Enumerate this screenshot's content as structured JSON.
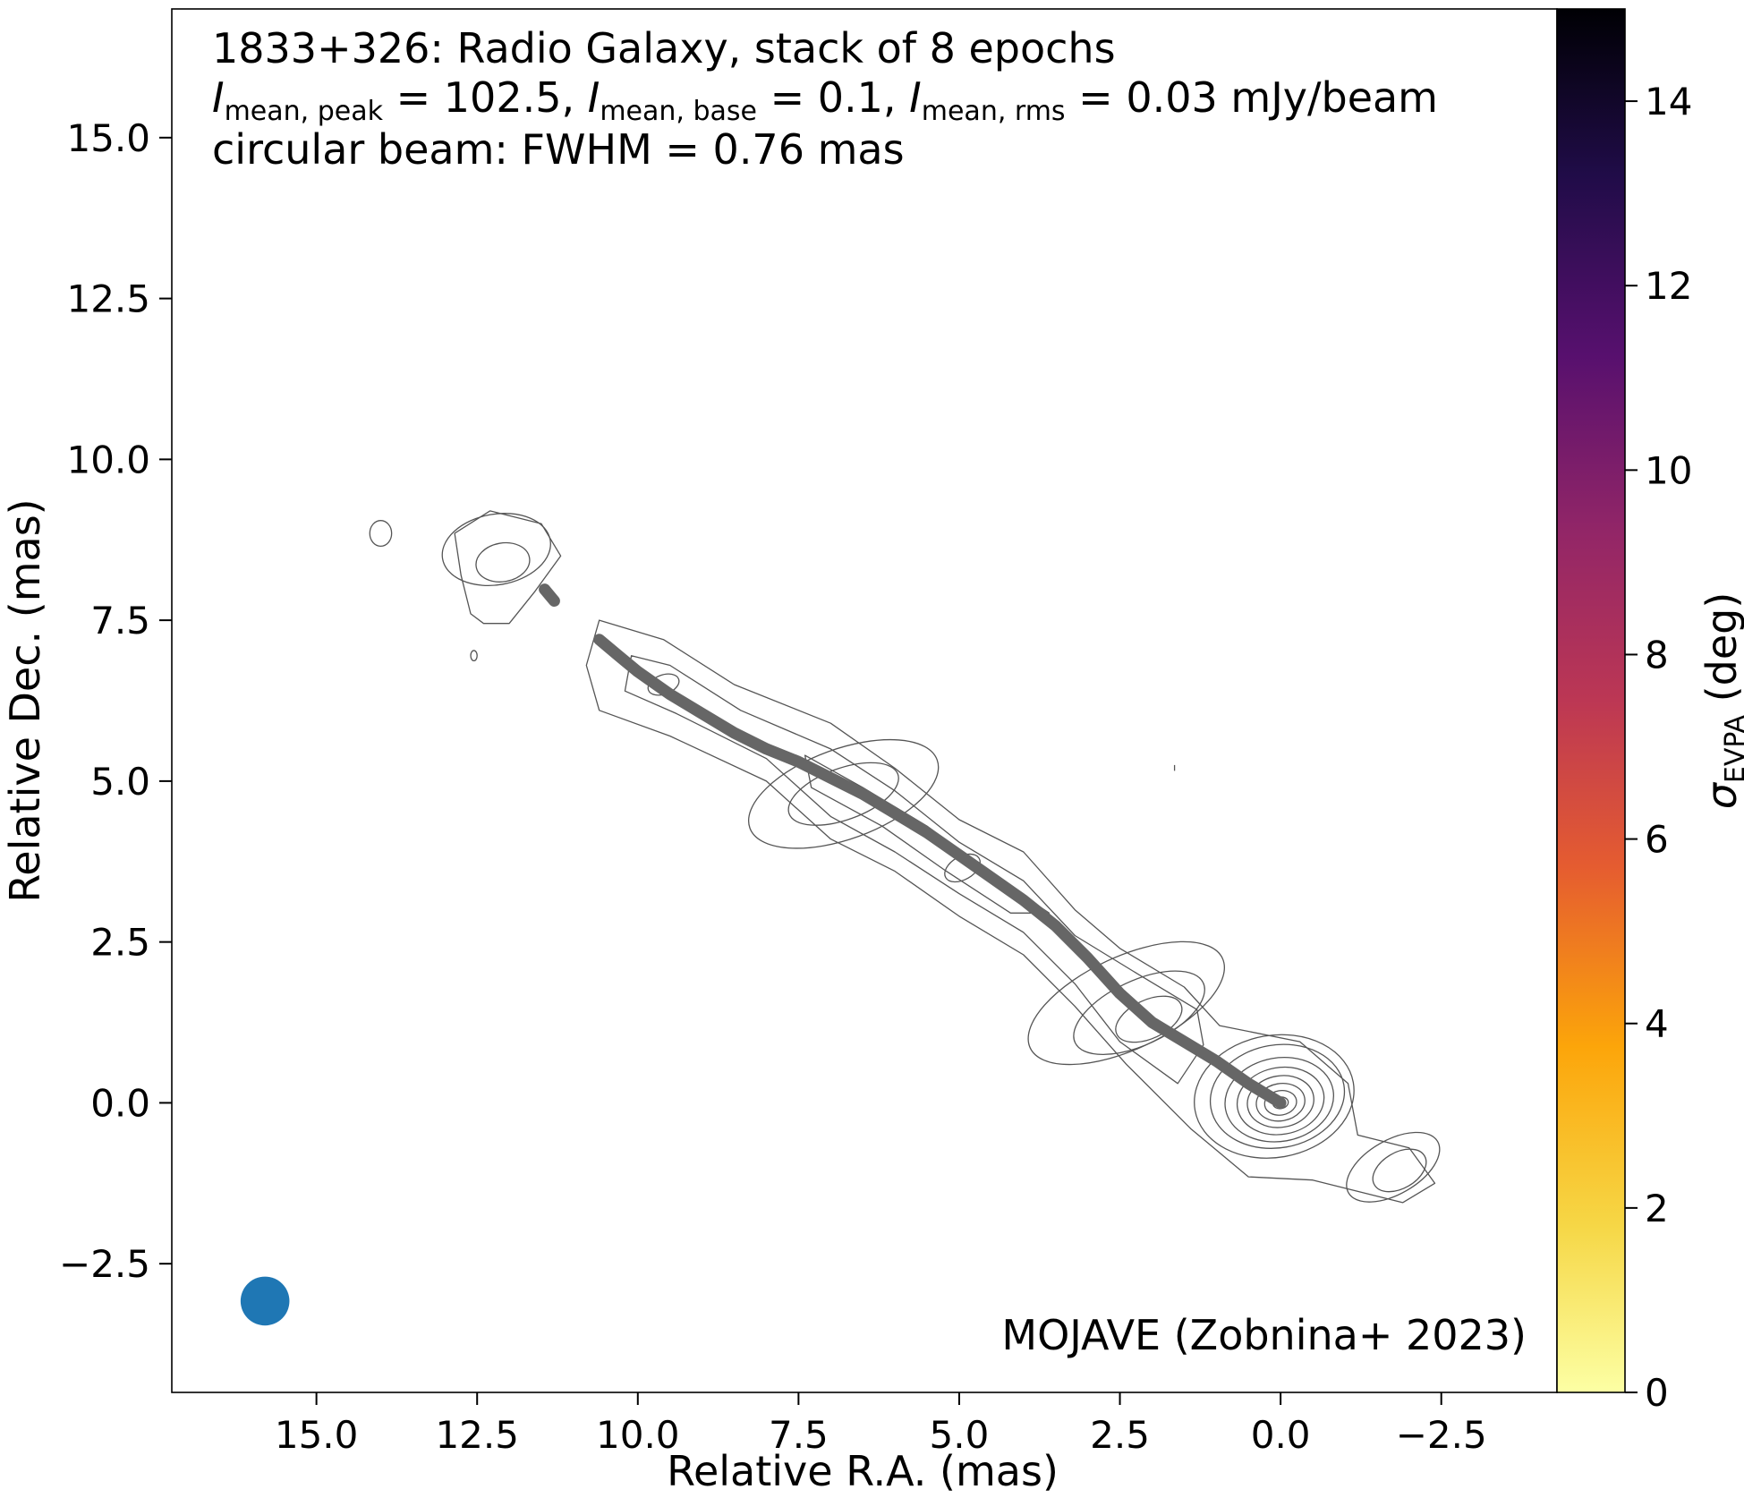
{
  "chart_data": {
    "type": "scatter",
    "title_lines": [
      "1833+326: Radio Galaxy, stack of 8 epochs",
      [
        "I",
        "mean, peak",
        " = 102.5, ",
        "I",
        "mean, base",
        " = 0.1, ",
        "I",
        "mean, rms",
        " = 0.03 mJy/beam"
      ],
      "circular beam: FWHM = 0.76 mas"
    ],
    "credit": "MOJAVE (Zobnina+ 2023)",
    "xlabel": "Relative R.A. (mas)",
    "ylabel": "Relative Dec. (mas)",
    "colorbar_label": {
      "symbol": "σ",
      "sub": "EVPA",
      "unit": " (deg)"
    },
    "xlim": [
      17.25,
      -4.3
    ],
    "ylim": [
      -4.5,
      17.0
    ],
    "xticks": [
      15.0,
      12.5,
      10.0,
      7.5,
      5.0,
      2.5,
      0.0,
      -2.5
    ],
    "xtick_labels": [
      "15.0",
      "12.5",
      "10.0",
      "7.5",
      "5.0",
      "2.5",
      "0.0",
      "−2.5"
    ],
    "yticks": [
      -2.5,
      0.0,
      2.5,
      5.0,
      7.5,
      10.0,
      12.5,
      15.0
    ],
    "ytick_labels": [
      "−2.5",
      "0.0",
      "2.5",
      "5.0",
      "7.5",
      "10.0",
      "12.5",
      "15.0"
    ],
    "colorbar_range": [
      0,
      15
    ],
    "colorbar_ticks": [
      0,
      2,
      4,
      6,
      8,
      10,
      12,
      14
    ],
    "colorbar_tick_labels": [
      "0",
      "2",
      "4",
      "6",
      "8",
      "10",
      "12",
      "14"
    ],
    "colormap": "inferno_r",
    "grid": false,
    "ridgeline_color": "#666666",
    "contour_color": "#555555",
    "beam_color": "#1f77b4",
    "beam": {
      "x": 15.8,
      "y": -3.08,
      "fwhm": 0.76
    },
    "ridgeline_segments": [
      [
        [
          0.0,
          0.0
        ],
        [
          0.5,
          0.3
        ],
        [
          1.0,
          0.65
        ],
        [
          1.5,
          0.95
        ],
        [
          2.0,
          1.25
        ],
        [
          2.5,
          1.7
        ],
        [
          3.0,
          2.25
        ],
        [
          3.5,
          2.75
        ],
        [
          4.0,
          3.15
        ],
        [
          4.5,
          3.5
        ],
        [
          5.0,
          3.85
        ],
        [
          5.5,
          4.2
        ],
        [
          6.0,
          4.5
        ],
        [
          6.5,
          4.8
        ],
        [
          7.0,
          5.05
        ],
        [
          7.5,
          5.3
        ],
        [
          8.0,
          5.5
        ],
        [
          8.5,
          5.75
        ],
        [
          9.0,
          6.05
        ],
        [
          9.5,
          6.35
        ],
        [
          10.0,
          6.7
        ],
        [
          10.3,
          6.95
        ],
        [
          10.6,
          7.2
        ]
      ],
      [
        [
          11.45,
          7.98
        ],
        [
          11.3,
          7.8
        ]
      ]
    ],
    "contours": [
      {
        "cx": 0.1,
        "cy": 0.1,
        "a": 1.25,
        "b": 0.95,
        "angle": -10
      },
      {
        "cx": 0.05,
        "cy": 0.1,
        "a": 1.05,
        "b": 0.8,
        "angle": -10
      },
      {
        "cx": 0.02,
        "cy": 0.05,
        "a": 0.85,
        "b": 0.65,
        "angle": -10
      },
      {
        "cx": 0.0,
        "cy": 0.03,
        "a": 0.68,
        "b": 0.52,
        "angle": -10
      },
      {
        "cx": 0.0,
        "cy": 0.02,
        "a": 0.52,
        "b": 0.4,
        "angle": -10
      },
      {
        "cx": 0.0,
        "cy": 0.01,
        "a": 0.38,
        "b": 0.29,
        "angle": -10
      },
      {
        "cx": 0.0,
        "cy": 0.0,
        "a": 0.25,
        "b": 0.19,
        "angle": -10
      },
      {
        "cx": 0.0,
        "cy": 0.0,
        "a": 0.12,
        "b": 0.09,
        "angle": -10
      },
      {
        "cx": 2.05,
        "cy": 1.3,
        "a": 0.55,
        "b": 0.3,
        "angle": -25
      },
      {
        "cx": 2.2,
        "cy": 1.4,
        "a": 1.1,
        "b": 0.5,
        "angle": -25
      },
      {
        "cx": 2.4,
        "cy": 1.55,
        "a": 1.65,
        "b": 0.72,
        "angle": -25
      },
      {
        "cx": 6.8,
        "cy": 4.8,
        "a": 0.9,
        "b": 0.4,
        "angle": -20
      },
      {
        "cx": 6.8,
        "cy": 4.8,
        "a": 1.55,
        "b": 0.7,
        "angle": -20
      },
      {
        "cx": 4.95,
        "cy": 3.65,
        "a": 0.3,
        "b": 0.18,
        "angle": -30
      },
      {
        "cx": 9.6,
        "cy": 6.5,
        "a": 0.25,
        "b": 0.15,
        "angle": -20
      },
      {
        "cx": 12.1,
        "cy": 8.4,
        "a": 0.42,
        "b": 0.3,
        "angle": -10
      },
      {
        "cx": 12.2,
        "cy": 8.6,
        "a": 0.85,
        "b": 0.55,
        "angle": -10
      },
      {
        "cx": 14.0,
        "cy": 8.85,
        "a": 0.17,
        "b": 0.2,
        "angle": 0
      },
      {
        "cx": 12.55,
        "cy": 6.95,
        "a": 0.05,
        "b": 0.08,
        "angle": 0
      },
      {
        "cx": -1.85,
        "cy": -1.05,
        "a": 0.45,
        "b": 0.28,
        "angle": -30
      },
      {
        "cx": -1.75,
        "cy": -1.0,
        "a": 0.8,
        "b": 0.42,
        "angle": -30
      }
    ],
    "envelopes": [
      [
        [
          0.95,
          1.2
        ],
        [
          1.5,
          1.8
        ],
        [
          2.5,
          2.4
        ],
        [
          3.2,
          3.0
        ],
        [
          4.0,
          3.9
        ],
        [
          5.0,
          4.4
        ],
        [
          6.0,
          5.2
        ],
        [
          7.0,
          5.9
        ],
        [
          8.5,
          6.5
        ],
        [
          9.6,
          7.2
        ],
        [
          10.6,
          7.5
        ],
        [
          10.8,
          6.8
        ],
        [
          10.6,
          6.1
        ],
        [
          9.5,
          5.7
        ],
        [
          8.0,
          5.0
        ],
        [
          7.0,
          4.1
        ],
        [
          6.0,
          3.6
        ],
        [
          5.0,
          2.9
        ],
        [
          4.0,
          2.3
        ],
        [
          3.2,
          1.5
        ],
        [
          2.4,
          0.6
        ],
        [
          1.4,
          -0.4
        ],
        [
          0.5,
          -1.15
        ],
        [
          -0.5,
          -1.2
        ],
        [
          -1.3,
          -1.4
        ],
        [
          -1.9,
          -1.55
        ],
        [
          -2.4,
          -1.25
        ],
        [
          -2.0,
          -0.7
        ],
        [
          -1.2,
          -0.5
        ],
        [
          -1.05,
          0.3
        ],
        [
          -0.3,
          0.95
        ],
        [
          0.95,
          1.2
        ]
      ],
      [
        [
          1.3,
          1.45
        ],
        [
          2.3,
          2.05
        ],
        [
          3.2,
          2.6
        ],
        [
          4.0,
          3.45
        ],
        [
          5.0,
          4.05
        ],
        [
          6.0,
          4.85
        ],
        [
          7.0,
          5.5
        ],
        [
          8.4,
          6.1
        ],
        [
          9.5,
          6.8
        ],
        [
          10.1,
          6.95
        ],
        [
          10.2,
          6.4
        ],
        [
          9.4,
          6.05
        ],
        [
          8.0,
          5.35
        ],
        [
          7.0,
          4.45
        ],
        [
          6.0,
          3.9
        ],
        [
          5.0,
          3.25
        ],
        [
          4.0,
          2.65
        ],
        [
          3.2,
          1.85
        ],
        [
          2.5,
          0.95
        ],
        [
          1.6,
          0.3
        ],
        [
          1.2,
          0.9
        ],
        [
          1.3,
          1.45
        ]
      ],
      [
        [
          3.6,
          2.95
        ],
        [
          4.5,
          3.55
        ],
        [
          5.5,
          4.3
        ],
        [
          6.5,
          4.9
        ],
        [
          7.4,
          5.4
        ],
        [
          7.3,
          4.9
        ],
        [
          6.2,
          4.3
        ],
        [
          5.2,
          3.6
        ],
        [
          4.2,
          2.95
        ],
        [
          3.6,
          2.95
        ]
      ],
      [
        [
          12.75,
          8.2
        ],
        [
          12.85,
          8.85
        ],
        [
          12.3,
          9.2
        ],
        [
          11.5,
          9.0
        ],
        [
          11.2,
          8.5
        ],
        [
          11.6,
          7.95
        ],
        [
          12.0,
          7.45
        ],
        [
          12.4,
          7.45
        ],
        [
          12.6,
          7.6
        ],
        [
          12.75,
          8.2
        ]
      ]
    ]
  }
}
